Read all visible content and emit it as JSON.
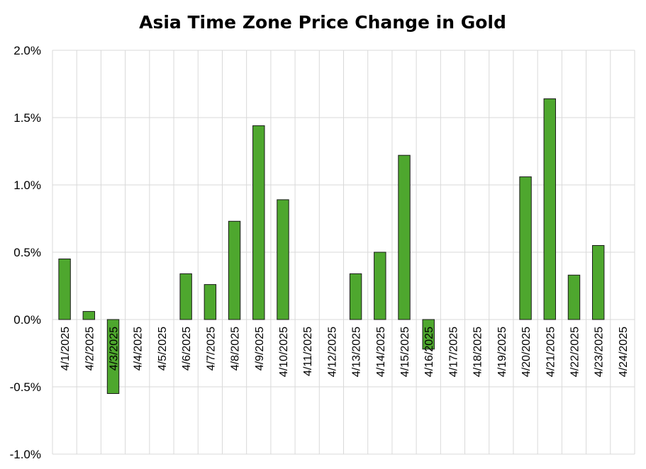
{
  "chart_data": {
    "type": "bar",
    "title": "Asia Time Zone Price Change in Gold",
    "xlabel": "",
    "ylabel": "",
    "ylim": [
      -1.0,
      2.0
    ],
    "ytick_step": 0.5,
    "ytick_labels": [
      "-1.0%",
      "-0.5%",
      "0.0%",
      "0.5%",
      "1.0%",
      "1.5%",
      "2.0%"
    ],
    "grid": true,
    "bar_color": "#4ea72e",
    "categories": [
      "4/1/2025",
      "4/2/2025",
      "4/3/2025",
      "4/4/2025",
      "4/5/2025",
      "4/6/2025",
      "4/7/2025",
      "4/8/2025",
      "4/9/2025",
      "4/10/2025",
      "4/11/2025",
      "4/12/2025",
      "4/13/2025",
      "4/14/2025",
      "4/15/2025",
      "4/16/2025",
      "4/17/2025",
      "4/18/2025",
      "4/19/2025",
      "4/20/2025",
      "4/21/2025",
      "4/22/2025",
      "4/23/2025",
      "4/24/2025"
    ],
    "values": [
      0.45,
      0.06,
      -0.55,
      null,
      null,
      0.34,
      0.26,
      0.73,
      1.44,
      0.89,
      null,
      null,
      0.34,
      0.5,
      1.22,
      -0.22,
      null,
      null,
      null,
      1.06,
      1.64,
      0.33,
      0.55,
      null
    ]
  }
}
